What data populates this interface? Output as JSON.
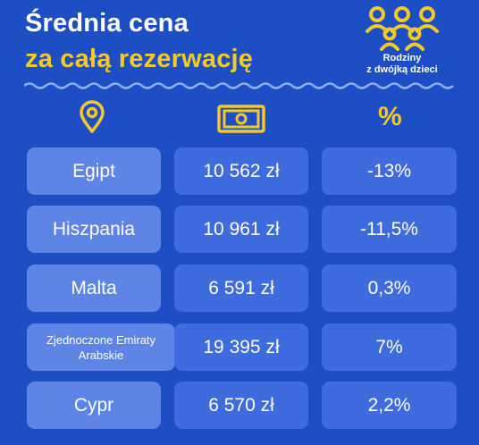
{
  "title": {
    "line1": "Średnia cena",
    "line2": "za całą rezerwację"
  },
  "badge": {
    "line1": "Rodziny",
    "line2": "z dwójką dzieci",
    "icon": "family-icon"
  },
  "headers": {
    "location_icon": "location-pin-icon",
    "money_icon": "banknote-icon",
    "percent": "%"
  },
  "colors": {
    "background": "#1e4ec4",
    "accent": "#f5c926",
    "cell_light": "#5e85e6",
    "cell": "#3e6bdd"
  },
  "rows": [
    {
      "country": "Egipt",
      "price": "10 562 zł",
      "change": "-13%"
    },
    {
      "country": "Hiszpania",
      "price": "10 961 zł",
      "change": "-11,5%"
    },
    {
      "country": "Malta",
      "price": "6 591 zł",
      "change": "0,3%"
    },
    {
      "country": "Zjednoczone Emiraty Arabskie",
      "price": "19 395 zł",
      "change": "7%"
    },
    {
      "country": "Cypr",
      "price": "6 570 zł",
      "change": "2,2%"
    }
  ]
}
